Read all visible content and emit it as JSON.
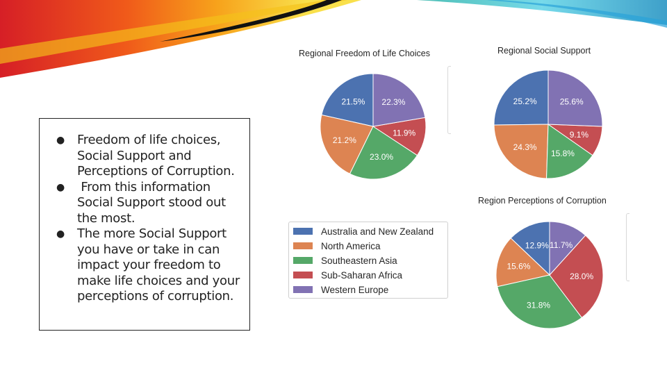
{
  "bullets": [
    "Freedom of life choices, Social Support and Perceptions of Corruption.",
    " From this information Social Support stood out the most.",
    "The more Social Support you have or take in can impact your freedom to make life choices and your perceptions of corruption."
  ],
  "bullet_symbol": "●",
  "colors": {
    "australia": "#4c72b0",
    "north_america": "#dd8452",
    "southeastern_asia": "#55a868",
    "sub_saharan_africa": "#c44e52",
    "western_europe": "#8172b3"
  },
  "legend": [
    {
      "label": "Australia and New Zealand",
      "color": "#4c72b0"
    },
    {
      "label": "North America",
      "color": "#dd8452"
    },
    {
      "label": "Southeastern Asia",
      "color": "#55a868"
    },
    {
      "label": "Sub-Saharan Africa",
      "color": "#c44e52"
    },
    {
      "label": "Western Europe",
      "color": "#8172b3"
    }
  ],
  "chart_data": [
    {
      "type": "pie",
      "title": "Regional Freedom of Life Choices",
      "categories": [
        "Australia and New Zealand",
        "North America",
        "Southeastern Asia",
        "Sub-Saharan Africa",
        "Western Europe"
      ],
      "values": [
        21.5,
        21.2,
        23.0,
        11.9,
        22.3
      ],
      "labels": [
        "21.5%",
        "21.2%",
        "23.0%",
        "11.9%",
        "22.3%"
      ],
      "colors": [
        "#4c72b0",
        "#dd8452",
        "#55a868",
        "#c44e52",
        "#8172b3"
      ],
      "order": [
        0,
        1,
        2,
        3,
        4
      ],
      "direction": "counterclockwise"
    },
    {
      "type": "pie",
      "title": "Regional Social Support",
      "categories": [
        "Australia and New Zealand",
        "North America",
        "Southeastern Asia",
        "Sub-Saharan Africa",
        "Western Europe"
      ],
      "values": [
        25.2,
        24.3,
        15.8,
        9.1,
        25.6
      ],
      "labels": [
        "25.2%",
        "24.3%",
        "15.8%",
        "9.1%",
        "25.6%"
      ],
      "colors": [
        "#4c72b0",
        "#dd8452",
        "#55a868",
        "#c44e52",
        "#8172b3"
      ],
      "order": [
        0,
        1,
        2,
        3,
        4
      ],
      "direction": "counterclockwise"
    },
    {
      "type": "pie",
      "title": "Region Perceptions of Corruption",
      "categories": [
        "Australia and New Zealand",
        "North America",
        "Southeastern Asia",
        "Sub-Saharan Africa",
        "Western Europe"
      ],
      "values": [
        12.9,
        15.6,
        31.8,
        28.0,
        11.7
      ],
      "labels": [
        "12.9%",
        "15.6%",
        "31.8%",
        "28.0%",
        "11.7%"
      ],
      "colors": [
        "#4c72b0",
        "#dd8452",
        "#55a868",
        "#c44e52",
        "#8172b3"
      ],
      "order": [
        0,
        1,
        2,
        3,
        4
      ],
      "direction": "counterclockwise"
    }
  ]
}
